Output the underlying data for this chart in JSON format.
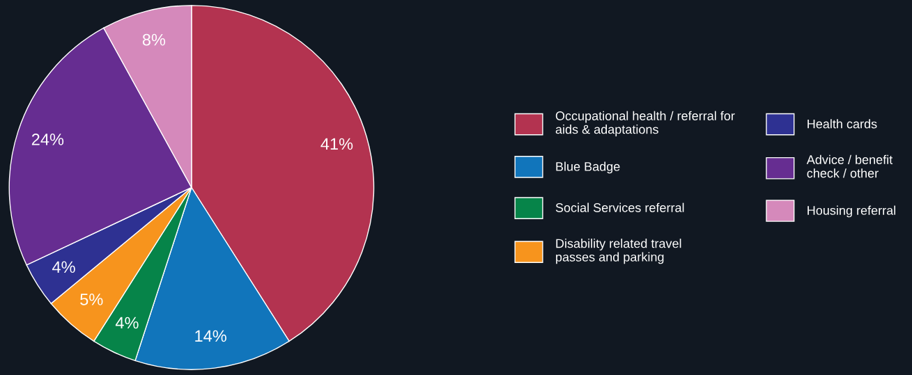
{
  "chart_data": {
    "type": "pie",
    "categories": [
      "Occupational health / referral for\naids & adaptations",
      "Blue Badge",
      "Social Services referral",
      "Disability related travel\npasses and parking",
      "Health cards",
      "Advice / benefit\ncheck / other",
      "Housing referral"
    ],
    "values": [
      41,
      14,
      4,
      5,
      4,
      24,
      8
    ],
    "colors": [
      "#b33350",
      "#1175bb",
      "#068449",
      "#f7941d",
      "#2e3192",
      "#662d91",
      "#d589bb"
    ],
    "value_labels": [
      "41%",
      "14%",
      "4%",
      "5%",
      "4%",
      "24%",
      "8%"
    ],
    "legend": "right"
  }
}
